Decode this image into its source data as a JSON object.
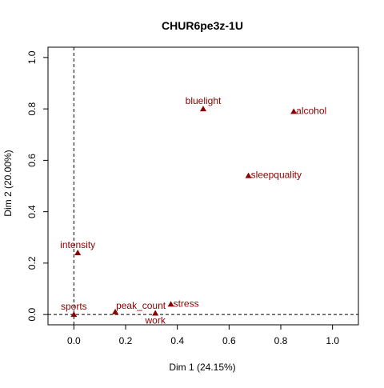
{
  "chart_data": {
    "type": "scatter",
    "title": "CHUR6pe3z-1U",
    "xlabel": "Dim 1 (24.15%)",
    "ylabel": "Dim 2 (20.00%)",
    "xlim": [
      -0.1,
      1.1
    ],
    "ylim": [
      -0.04,
      1.04
    ],
    "xticks": [
      0.0,
      0.2,
      0.4,
      0.6,
      0.8,
      1.0
    ],
    "yticks": [
      0.0,
      0.2,
      0.4,
      0.6,
      0.8,
      1.0
    ],
    "xtick_labels": [
      "0.0",
      "0.2",
      "0.4",
      "0.6",
      "0.8",
      "1.0"
    ],
    "ytick_labels": [
      "0.0",
      "0.2",
      "0.4",
      "0.6",
      "0.8",
      "1.0"
    ],
    "reference_lines": {
      "x": 0,
      "y": 0
    },
    "grid": false,
    "legend": "none",
    "marker": "filled-triangle",
    "point_color": "#8b0000",
    "axis_color": "#000000",
    "points": [
      {
        "label": "bluelight",
        "x": 0.5,
        "y": 0.8,
        "label_pos": "above"
      },
      {
        "label": "alcohol",
        "x": 0.85,
        "y": 0.79,
        "label_pos": "right"
      },
      {
        "label": "sleepquality",
        "x": 0.675,
        "y": 0.54,
        "label_pos": "right"
      },
      {
        "label": "intensity",
        "x": 0.015,
        "y": 0.24,
        "label_pos": "above"
      },
      {
        "label": "stress",
        "x": 0.375,
        "y": 0.04,
        "label_pos": "right"
      },
      {
        "label": "peak_count",
        "x": 0.16,
        "y": 0.01,
        "label_pos": "above-right"
      },
      {
        "label": "work",
        "x": 0.315,
        "y": 0.005,
        "label_pos": "below"
      },
      {
        "label": "sports",
        "x": 0.0,
        "y": 0.0,
        "label_pos": "above"
      }
    ]
  }
}
